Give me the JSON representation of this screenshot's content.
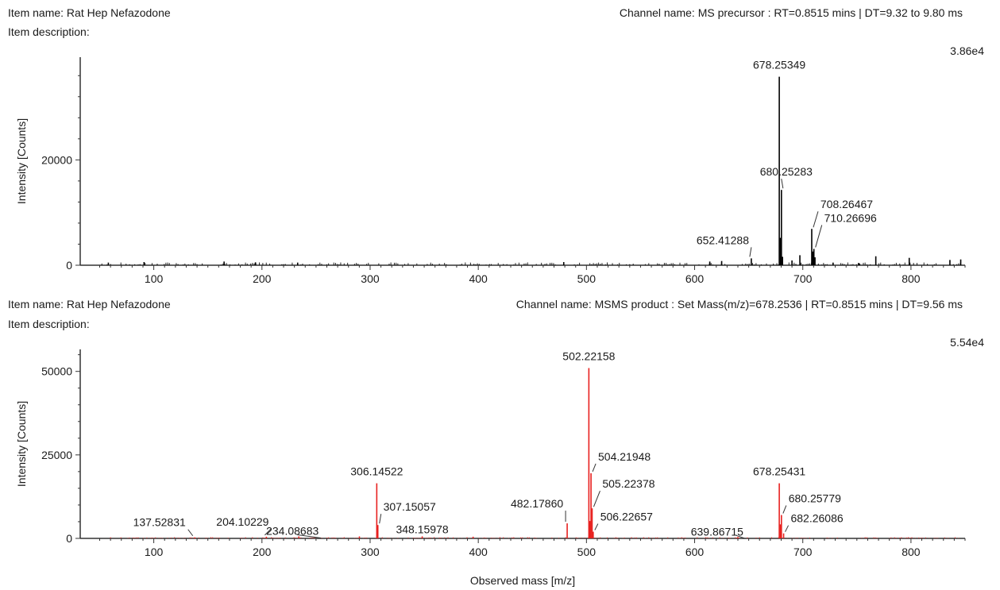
{
  "panels": [
    {
      "item_name": "Item name: Rat Hep Nefazodone",
      "item_description": "Item description:",
      "channel_name": "Channel name: MS precursor : RT=0.8515 mins | DT=9.32 to 9.80 ms",
      "max_label": "3.86e4",
      "ylabel": "Intensity [Counts]"
    },
    {
      "item_name": "Item name: Rat Hep Nefazodone",
      "item_description": "Item description:",
      "channel_name": "Channel name: MSMS product : Set Mass(m/z)=678.2536 | RT=0.8515 mins | DT=9.56 ms",
      "max_label": "5.54e4",
      "ylabel": "Intensity [Counts]",
      "xlabel": "Observed mass [m/z]"
    }
  ],
  "chart_data": [
    {
      "type": "bar",
      "subtype": "mass-spectrum-stick",
      "color": "#000000",
      "xlim": [
        32,
        850
      ],
      "ylim": [
        0,
        38600
      ],
      "x_ticks": [
        100,
        200,
        300,
        400,
        500,
        600,
        700,
        800
      ],
      "y_ticks": [
        0,
        20000
      ],
      "ylabel": "Intensity [Counts]",
      "xlabel": "",
      "peaks": [
        {
          "mz": 678.25349,
          "intensity": 35800,
          "label": "678.25349"
        },
        {
          "mz": 680.25283,
          "intensity": 14300,
          "label": "680.25283"
        },
        {
          "mz": 708.26467,
          "intensity": 6900,
          "label": "708.26467"
        },
        {
          "mz": 710.26696,
          "intensity": 3100,
          "label": "710.26696"
        },
        {
          "mz": 652.41288,
          "intensity": 1300,
          "label": "652.41288"
        },
        {
          "mz": 679.25,
          "intensity": 5200,
          "label": ""
        },
        {
          "mz": 681.25,
          "intensity": 1600,
          "label": ""
        },
        {
          "mz": 697.3,
          "intensity": 1900,
          "label": ""
        },
        {
          "mz": 709.26,
          "intensity": 2600,
          "label": ""
        },
        {
          "mz": 711.27,
          "intensity": 1500,
          "label": ""
        },
        {
          "mz": 767.5,
          "intensity": 1700,
          "label": ""
        },
        {
          "mz": 798.4,
          "intensity": 1400,
          "label": ""
        },
        {
          "mz": 836.0,
          "intensity": 1000,
          "label": ""
        },
        {
          "mz": 846.0,
          "intensity": 1100,
          "label": ""
        },
        {
          "mz": 58,
          "intensity": 500,
          "label": ""
        },
        {
          "mz": 91,
          "intensity": 600,
          "label": ""
        },
        {
          "mz": 165,
          "intensity": 700,
          "label": ""
        },
        {
          "mz": 194,
          "intensity": 550,
          "label": ""
        },
        {
          "mz": 233,
          "intensity": 500,
          "label": ""
        },
        {
          "mz": 479,
          "intensity": 600,
          "label": ""
        },
        {
          "mz": 614,
          "intensity": 700,
          "label": ""
        },
        {
          "mz": 625,
          "intensity": 800,
          "label": ""
        },
        {
          "mz": 690,
          "intensity": 900,
          "label": ""
        },
        {
          "mz": 728,
          "intensity": 500,
          "label": ""
        },
        {
          "mz": 752,
          "intensity": 400,
          "label": ""
        }
      ]
    },
    {
      "type": "bar",
      "subtype": "mass-spectrum-stick",
      "color": "#e8211f",
      "xlim": [
        32,
        850
      ],
      "ylim": [
        0,
        55400
      ],
      "x_ticks": [
        100,
        200,
        300,
        400,
        500,
        600,
        700,
        800
      ],
      "y_ticks": [
        0,
        25000,
        50000
      ],
      "ylabel": "Intensity [Counts]",
      "xlabel": "Observed mass [m/z]",
      "peaks": [
        {
          "mz": 502.22158,
          "intensity": 51000,
          "label": "502.22158"
        },
        {
          "mz": 504.21948,
          "intensity": 19500,
          "label": "504.21948"
        },
        {
          "mz": 505.22378,
          "intensity": 9000,
          "label": "505.22378"
        },
        {
          "mz": 506.22657,
          "intensity": 2000,
          "label": "506.22657"
        },
        {
          "mz": 306.14522,
          "intensity": 16500,
          "label": "306.14522"
        },
        {
          "mz": 307.15057,
          "intensity": 4000,
          "label": "307.15057"
        },
        {
          "mz": 348.15978,
          "intensity": 600,
          "label": "348.15978"
        },
        {
          "mz": 482.1786,
          "intensity": 4500,
          "label": "482.17860"
        },
        {
          "mz": 678.25431,
          "intensity": 16500,
          "label": "678.25431"
        },
        {
          "mz": 680.25779,
          "intensity": 7000,
          "label": "680.25779"
        },
        {
          "mz": 682.26086,
          "intensity": 1500,
          "label": "682.26086"
        },
        {
          "mz": 639.86715,
          "intensity": 400,
          "label": "639.86715"
        },
        {
          "mz": 137.52831,
          "intensity": 300,
          "label": "137.52831"
        },
        {
          "mz": 204.10229,
          "intensity": 500,
          "label": "204.10229"
        },
        {
          "mz": 234.08683,
          "intensity": 600,
          "label": "234.08683"
        },
        {
          "mz": 679.25,
          "intensity": 4200,
          "label": ""
        },
        {
          "mz": 503.22,
          "intensity": 5200,
          "label": ""
        },
        {
          "mz": 290.1,
          "intensity": 600,
          "label": ""
        },
        {
          "mz": 395.2,
          "intensity": 500,
          "label": ""
        }
      ]
    }
  ]
}
